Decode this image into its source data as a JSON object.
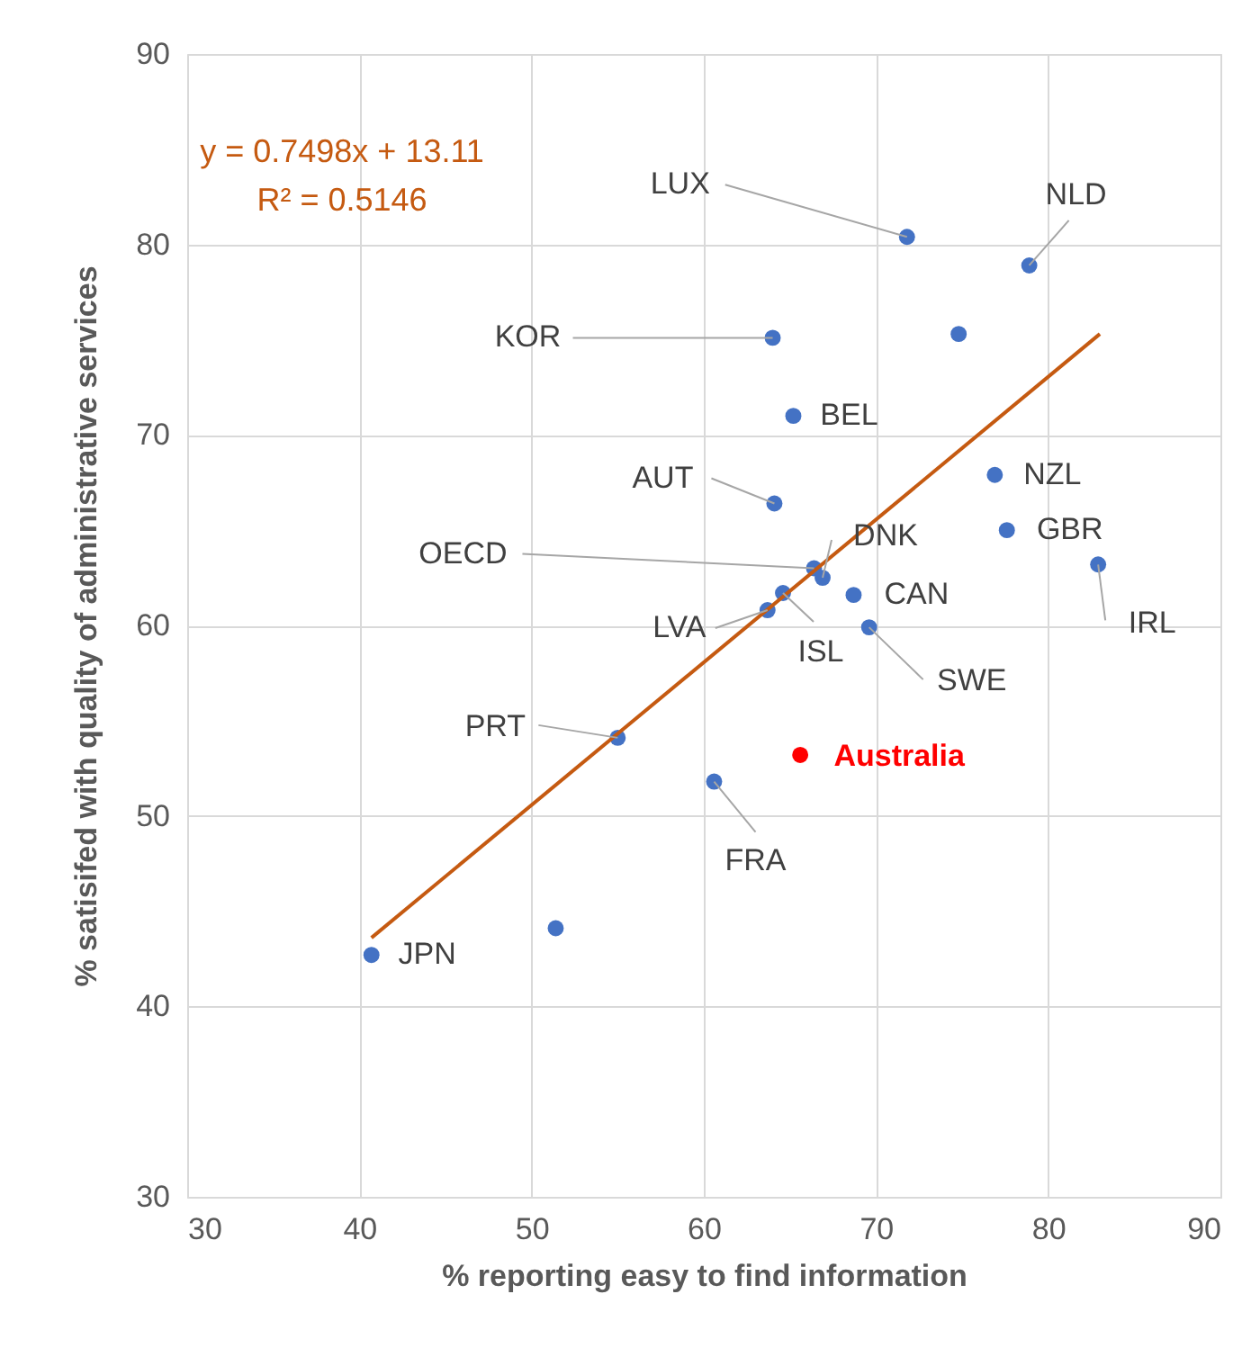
{
  "chart_data": {
    "type": "scatter",
    "xlabel": "% reporting easy to find information",
    "ylabel": "% satisifed with quality of administrative services",
    "xlim": [
      30,
      90
    ],
    "xticks": [
      30,
      40,
      50,
      60,
      70,
      80,
      90
    ],
    "ylim": [
      30,
      90
    ],
    "yticks": [
      30,
      40,
      50,
      60,
      70,
      80,
      90
    ],
    "grid": true,
    "series": [
      {
        "marker": "circle",
        "color": "#4472c4",
        "x": [
          71.8,
          78.9,
          64.0,
          74.8,
          65.2,
          64.1,
          76.9,
          77.6,
          82.9,
          66.4,
          66.9,
          64.6,
          68.7,
          63.7,
          69.6,
          55.0,
          65.6,
          60.6,
          51.4,
          40.7
        ],
        "values": [
          80.4,
          78.9,
          75.1,
          75.3,
          71.0,
          66.4,
          67.9,
          65.0,
          63.2,
          63.0,
          62.5,
          61.7,
          61.6,
          60.8,
          59.9,
          54.1,
          53.2,
          51.8,
          44.1,
          42.7
        ],
        "colors": [
          "#4472c4",
          "#4472c4",
          "#4472c4",
          "#4472c4",
          "#4472c4",
          "#4472c4",
          "#4472c4",
          "#4472c4",
          "#4472c4",
          "#4472c4",
          "#4472c4",
          "#4472c4",
          "#4472c4",
          "#4472c4",
          "#4472c4",
          "#4472c4",
          "#ff0000",
          "#4472c4",
          "#4472c4",
          "#4472c4"
        ]
      },
      {
        "type": "line",
        "color": "#c55a11",
        "x": [
          40.7,
          83.0
        ],
        "values": [
          43.6,
          75.3
        ]
      }
    ],
    "annotations": [
      "y = 0.7498x + 13.11",
      "R² = 0.5146",
      {
        "text": "LUX",
        "x": 71.8,
        "y": 80.4
      },
      {
        "text": "NLD",
        "x": 78.9,
        "y": 78.9
      },
      {
        "text": "KOR",
        "x": 64.0,
        "y": 75.1
      },
      {
        "text": "BEL",
        "x": 65.2,
        "y": 71.0
      },
      {
        "text": "AUT",
        "x": 64.1,
        "y": 66.4
      },
      {
        "text": "NZL",
        "x": 76.9,
        "y": 67.9
      },
      {
        "text": "GBR",
        "x": 77.6,
        "y": 65.0
      },
      {
        "text": "IRL",
        "x": 82.9,
        "y": 63.2
      },
      {
        "text": "OECD",
        "x": 66.4,
        "y": 63.0
      },
      {
        "text": "DNK",
        "x": 66.9,
        "y": 62.5
      },
      {
        "text": "CAN",
        "x": 68.7,
        "y": 61.6
      },
      {
        "text": "LVA",
        "x": 63.7,
        "y": 60.8
      },
      {
        "text": "ISL",
        "x": 64.6,
        "y": 61.7
      },
      {
        "text": "SWE",
        "x": 69.6,
        "y": 59.9
      },
      {
        "text": "PRT",
        "x": 55.0,
        "y": 54.1
      },
      {
        "text": "Australia",
        "x": 65.6,
        "y": 53.2
      },
      {
        "text": "FRA",
        "x": 60.6,
        "y": 51.8
      },
      {
        "text": "JPN",
        "x": 40.7,
        "y": 42.7
      }
    ]
  }
}
